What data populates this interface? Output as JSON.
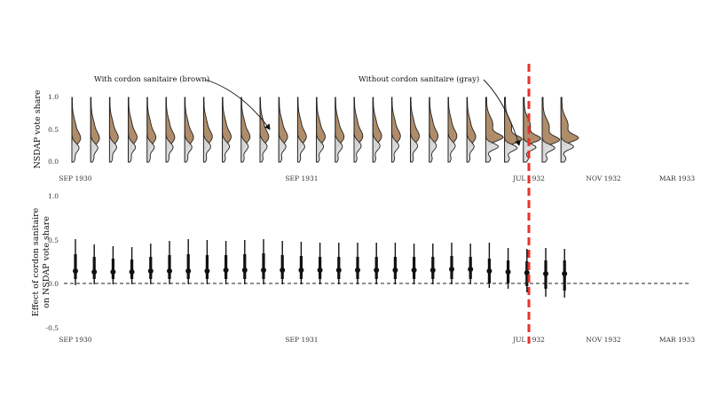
{
  "chart_data": [
    {
      "type": "density-ridge",
      "ylabel": "NSDAP vote share",
      "ylim": [
        0,
        1
      ],
      "yticks": [
        "1.0",
        "0.5",
        "0.0"
      ],
      "date_labels": [
        "SEP 1930",
        "SEP 1931",
        "JUL 1932",
        "NOV 1932",
        "MAR 1933"
      ],
      "series": [
        {
          "name": "With cordon sanitaire (brown)",
          "color": "#b08d6a"
        },
        {
          "name": "Without cordon sanitaire (gray)",
          "color": "#d9d9d9"
        }
      ],
      "annotations": [
        "With cordon sanitaire (brown)",
        "Without cordon sanitaire (gray)"
      ],
      "n_periods": 27,
      "brown_peak": [
        0.36,
        0.36,
        0.37,
        0.37,
        0.37,
        0.37,
        0.37,
        0.38,
        0.38,
        0.38,
        0.38,
        0.38,
        0.38,
        0.38,
        0.38,
        0.39,
        0.39,
        0.39,
        0.39,
        0.39,
        0.39,
        0.38,
        0.38,
        0.35,
        0.36,
        0.34,
        0.37
      ],
      "gray_peak": [
        0.22,
        0.22,
        0.23,
        0.23,
        0.23,
        0.23,
        0.23,
        0.24,
        0.24,
        0.24,
        0.24,
        0.24,
        0.24,
        0.24,
        0.24,
        0.25,
        0.25,
        0.25,
        0.25,
        0.25,
        0.25,
        0.24,
        0.24,
        0.22,
        0.23,
        0.22,
        0.24
      ],
      "event_line": "JUL 1932",
      "event_color": "#e8322b"
    },
    {
      "type": "coefficient",
      "ylabel_lines": [
        "Effect of cordon sanitaire",
        "on NSDAP vote share"
      ],
      "ylim": [
        -0.5,
        1.0
      ],
      "yticks": [
        "1.0",
        "0.5",
        "0.0",
        "-0.5"
      ],
      "date_labels": [
        "SEP 1930",
        "SEP 1931",
        "JUL 1932",
        "NOV 1932",
        "MAR 1933"
      ],
      "estimates": [
        0.14,
        0.13,
        0.13,
        0.13,
        0.14,
        0.14,
        0.14,
        0.14,
        0.15,
        0.15,
        0.15,
        0.15,
        0.15,
        0.15,
        0.15,
        0.15,
        0.15,
        0.15,
        0.15,
        0.15,
        0.16,
        0.16,
        0.14,
        0.13,
        0.12,
        0.11,
        0.11
      ],
      "ci95": [
        [
          -0.02,
          0.5
        ],
        [
          -0.01,
          0.44
        ],
        [
          -0.01,
          0.42
        ],
        [
          -0.01,
          0.41
        ],
        [
          -0.01,
          0.45
        ],
        [
          -0.01,
          0.48
        ],
        [
          -0.01,
          0.5
        ],
        [
          -0.01,
          0.49
        ],
        [
          -0.01,
          0.48
        ],
        [
          -0.01,
          0.49
        ],
        [
          -0.01,
          0.5
        ],
        [
          -0.01,
          0.48
        ],
        [
          -0.01,
          0.47
        ],
        [
          -0.01,
          0.46
        ],
        [
          -0.01,
          0.46
        ],
        [
          -0.01,
          0.46
        ],
        [
          -0.01,
          0.46
        ],
        [
          -0.01,
          0.46
        ],
        [
          -0.01,
          0.45
        ],
        [
          -0.01,
          0.45
        ],
        [
          -0.01,
          0.46
        ],
        [
          -0.01,
          0.45
        ],
        [
          -0.05,
          0.46
        ],
        [
          -0.06,
          0.4
        ],
        [
          -0.1,
          0.39
        ],
        [
          -0.15,
          0.4
        ],
        [
          -0.16,
          0.39
        ]
      ],
      "ci90": [
        [
          0.05,
          0.33
        ],
        [
          0.05,
          0.3
        ],
        [
          0.05,
          0.28
        ],
        [
          0.05,
          0.27
        ],
        [
          0.05,
          0.3
        ],
        [
          0.05,
          0.32
        ],
        [
          0.05,
          0.33
        ],
        [
          0.05,
          0.32
        ],
        [
          0.05,
          0.32
        ],
        [
          0.05,
          0.33
        ],
        [
          0.05,
          0.34
        ],
        [
          0.05,
          0.32
        ],
        [
          0.05,
          0.31
        ],
        [
          0.05,
          0.3
        ],
        [
          0.05,
          0.3
        ],
        [
          0.05,
          0.3
        ],
        [
          0.05,
          0.3
        ],
        [
          0.05,
          0.3
        ],
        [
          0.05,
          0.3
        ],
        [
          0.05,
          0.3
        ],
        [
          0.05,
          0.31
        ],
        [
          0.05,
          0.3
        ],
        [
          0.0,
          0.28
        ],
        [
          0.0,
          0.26
        ],
        [
          -0.03,
          0.25
        ],
        [
          -0.06,
          0.26
        ],
        [
          -0.08,
          0.26
        ]
      ],
      "reference_line": 0.0,
      "event_line": "JUL 1932"
    }
  ]
}
